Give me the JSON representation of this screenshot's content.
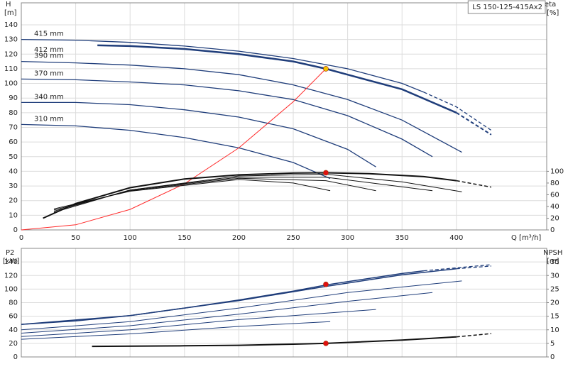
{
  "chart_data": [
    {
      "type": "line",
      "title": "LS 150-125-415Ax2",
      "ylabel": "H",
      "yunit": "[m]",
      "y2label": "eta",
      "y2unit": "[%]",
      "xlabel": "Q [m³/h]",
      "xlim": [
        0,
        483
      ],
      "xticks": [
        0,
        50,
        100,
        150,
        200,
        250,
        300,
        350,
        400
      ],
      "ylim": [
        0,
        155
      ],
      "yticks": [
        0,
        10,
        20,
        30,
        40,
        50,
        60,
        70,
        80,
        90,
        100,
        110,
        120,
        130,
        140
      ],
      "y2lim": [
        0,
        387.5
      ],
      "y2ticks": [
        0,
        20,
        40,
        60,
        80,
        100
      ],
      "grid": true,
      "series": [
        {
          "name": "415 mm",
          "color": "#1f3d7a",
          "x": [
            0,
            50,
            100,
            150,
            200,
            250,
            300,
            350,
            370
          ],
          "values": [
            130,
            129.5,
            128,
            125.5,
            122,
            117,
            110,
            100,
            94
          ]
        },
        {
          "color": "#1f3d7a",
          "dash": true,
          "x": [
            370,
            400,
            432
          ],
          "values": [
            94,
            84,
            68
          ]
        },
        {
          "name": "412 mm",
          "color": "#1f3d7a",
          "width": 2.5,
          "x": [
            70,
            100,
            150,
            200,
            250,
            280,
            300,
            350,
            400
          ],
          "values": [
            126,
            125.5,
            123.5,
            120,
            115,
            110,
            106,
            96,
            80
          ]
        },
        {
          "color": "#1f3d7a",
          "dash": true,
          "width": 2,
          "x": [
            400,
            432
          ],
          "values": [
            80,
            65
          ]
        },
        {
          "name": "390 mm",
          "color": "#1f3d7a",
          "x": [
            0,
            50,
            100,
            150,
            200,
            250,
            300,
            350,
            405
          ],
          "values": [
            115,
            114,
            112.5,
            110,
            106,
            99,
            89,
            75,
            53
          ]
        },
        {
          "name": "370 mm",
          "color": "#1f3d7a",
          "x": [
            0,
            50,
            100,
            150,
            200,
            250,
            300,
            350,
            378
          ],
          "values": [
            103,
            102.5,
            101,
            99,
            95,
            89,
            78,
            62,
            50
          ]
        },
        {
          "name": "340 mm",
          "color": "#1f3d7a",
          "x": [
            0,
            50,
            100,
            150,
            200,
            250,
            300,
            326
          ],
          "values": [
            87,
            87,
            85.5,
            82,
            77,
            69,
            55,
            43
          ]
        },
        {
          "name": "310 mm",
          "color": "#1f3d7a",
          "x": [
            0,
            50,
            100,
            150,
            200,
            250,
            284
          ],
          "values": [
            72,
            71,
            68,
            63,
            56,
            46,
            35
          ]
        },
        {
          "color": "#ff2a2a",
          "width": 1,
          "x": [
            0,
            50,
            100,
            150,
            200,
            250,
            280
          ],
          "values": [
            0,
            3.5,
            14,
            31.5,
            56,
            87.5,
            110
          ]
        },
        {
          "color": "#111111",
          "width": 2,
          "axis": "y2",
          "x": [
            20,
            50,
            100,
            150,
            200,
            250,
            280,
            320,
            370,
            400
          ],
          "values": [
            20,
            45,
            72,
            87,
            94,
            97,
            97.5,
            96,
            91,
            84
          ]
        },
        {
          "color": "#111111",
          "dash": true,
          "width": 1.5,
          "axis": "y2",
          "x": [
            400,
            432
          ],
          "values": [
            84,
            73
          ]
        },
        {
          "color": "#111111",
          "width": 1,
          "axis": "y2",
          "x": [
            30,
            100,
            200,
            280,
            350,
            405
          ],
          "values": [
            30,
            68,
            92,
            95,
            82,
            65
          ]
        },
        {
          "color": "#111111",
          "width": 1,
          "axis": "y2",
          "x": [
            30,
            100,
            200,
            280,
            378
          ],
          "values": [
            32,
            68,
            90,
            90,
            67
          ]
        },
        {
          "color": "#111111",
          "width": 1,
          "axis": "y2",
          "x": [
            30,
            100,
            200,
            280,
            326
          ],
          "values": [
            34,
            67,
            88,
            84,
            67
          ]
        },
        {
          "color": "#111111",
          "width": 1,
          "axis": "y2",
          "x": [
            30,
            100,
            200,
            250,
            284
          ],
          "values": [
            36,
            66,
            86,
            80,
            67
          ]
        },
        {
          "color": "#f5c400",
          "marker": true,
          "x": [
            280
          ],
          "values": [
            110
          ]
        },
        {
          "color": "#e01010",
          "marker": true,
          "axis": "y2",
          "x": [
            280
          ],
          "values": [
            97.5
          ]
        }
      ]
    },
    {
      "type": "line",
      "ylabel": "P2",
      "yunit": "[kW]",
      "y2label": "NPSH",
      "y2unit": "[m]",
      "xlim": [
        0,
        483
      ],
      "xticks": [
        0,
        50,
        100,
        150,
        200,
        250,
        300,
        350,
        400
      ],
      "ylim": [
        0,
        160
      ],
      "yticks": [
        0,
        20,
        40,
        60,
        80,
        100,
        120,
        140
      ],
      "y2lim": [
        0,
        40
      ],
      "y2ticks": [
        0,
        5,
        10,
        15,
        20,
        25,
        30,
        35
      ],
      "grid": true,
      "series": [
        {
          "color": "#1f3d7a",
          "width": 1.5,
          "x": [
            0,
            50,
            100,
            150,
            200,
            250,
            280,
            300,
            350,
            370
          ],
          "values": [
            48,
            53,
            61,
            72,
            84,
            97,
            106,
            111,
            123,
            127
          ]
        },
        {
          "color": "#1f3d7a",
          "dash": true,
          "x": [
            370,
            432
          ],
          "values": [
            127,
            136
          ]
        },
        {
          "color": "#1f3d7a",
          "width": 1.5,
          "x": [
            0,
            100,
            200,
            280,
            350,
            400
          ],
          "values": [
            48,
            61,
            83,
            104,
            121,
            130
          ]
        },
        {
          "color": "#1f3d7a",
          "dash": true,
          "x": [
            400,
            432
          ],
          "values": [
            130,
            134
          ]
        },
        {
          "color": "#1f3d7a",
          "width": 1,
          "x": [
            0,
            100,
            200,
            300,
            405
          ],
          "values": [
            40,
            52,
            72,
            95,
            112
          ]
        },
        {
          "color": "#1f3d7a",
          "width": 1,
          "x": [
            0,
            100,
            200,
            300,
            378
          ],
          "values": [
            35,
            46,
            63,
            82,
            95
          ]
        },
        {
          "color": "#1f3d7a",
          "width": 1,
          "x": [
            0,
            100,
            200,
            326
          ],
          "values": [
            30,
            40,
            55,
            70
          ]
        },
        {
          "color": "#1f3d7a",
          "width": 1,
          "x": [
            0,
            100,
            200,
            284
          ],
          "values": [
            26,
            34,
            45,
            52
          ]
        },
        {
          "color": "#111111",
          "width": 2,
          "axis": "y2",
          "x": [
            65,
            150,
            200,
            250,
            280,
            350,
            400
          ],
          "values": [
            3.9,
            4.1,
            4.3,
            4.7,
            5,
            6.2,
            7.4
          ]
        },
        {
          "color": "#111111",
          "dash": true,
          "width": 1.5,
          "axis": "y2",
          "x": [
            400,
            432
          ],
          "values": [
            7.4,
            8.6
          ]
        },
        {
          "color": "#e01010",
          "marker": true,
          "x": [
            280
          ],
          "values": [
            107
          ]
        },
        {
          "color": "#e01010",
          "marker": true,
          "axis": "y2",
          "x": [
            280
          ],
          "values": [
            5
          ]
        }
      ]
    }
  ]
}
